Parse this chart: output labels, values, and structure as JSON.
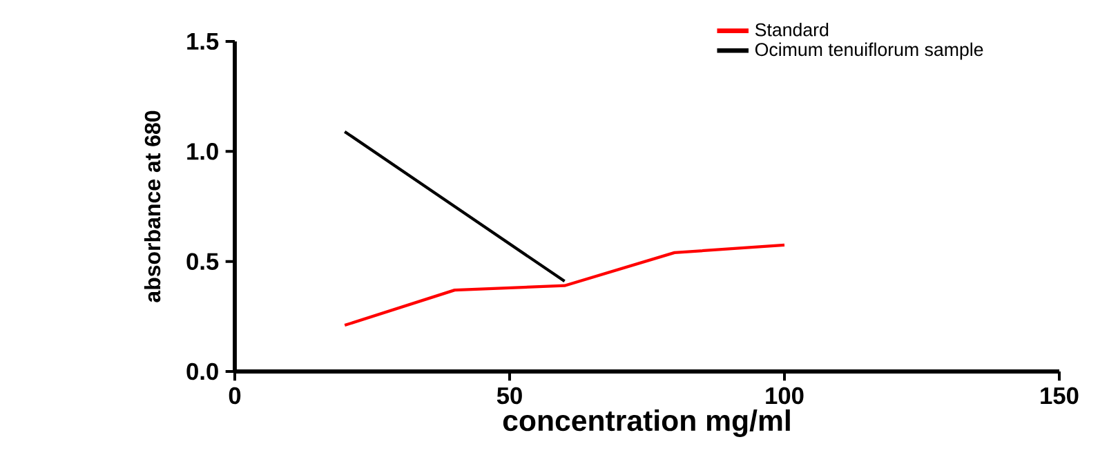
{
  "chart_data": {
    "type": "line",
    "xlabel": "concentration mg/ml",
    "ylabel": "absorbance at 680",
    "xlim": [
      0,
      150
    ],
    "ylim": [
      0,
      1.5
    ],
    "xticks": [
      0,
      50,
      100,
      150
    ],
    "yticks": [
      {
        "value": 0,
        "label": "0.0"
      },
      {
        "value": 0.5,
        "label": "0.5"
      },
      {
        "value": 1,
        "label": "1.0"
      },
      {
        "value": 1.5,
        "label": "1.5"
      }
    ],
    "grid": false,
    "legend": "top right",
    "marker": "none",
    "line_style": "solid",
    "x": [
      20,
      40,
      60,
      80,
      100
    ],
    "series": [
      {
        "name": "Standard",
        "color": "#ff0000",
        "values": [
          0.21,
          0.37,
          0.39,
          0.54,
          0.575
        ]
      },
      {
        "name": "Ocimum tenuiflorum sample",
        "color": "#000000",
        "x": [
          20,
          40,
          60
        ],
        "values": [
          1.09,
          0.75,
          0.41
        ]
      }
    ]
  }
}
